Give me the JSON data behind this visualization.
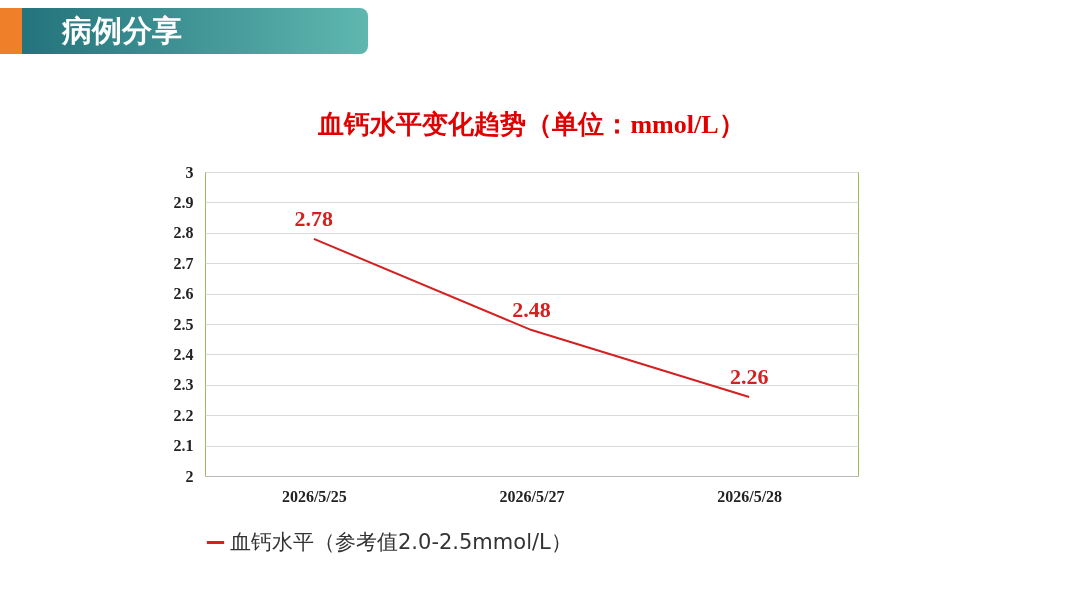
{
  "chart_data": {
    "type": "line",
    "title": "血钙水平变化趋势（单位：mmol/L）",
    "annotations": [
      "病例分享"
    ],
    "categories": [
      "2026/5/25",
      "2026/5/27",
      "2026/5/28"
    ],
    "series": [
      {
        "name": "血钙水平（参考值2.0-2.5mmol/L）",
        "color": "#d42020",
        "values": [
          2.78,
          2.48,
          2.26
        ]
      }
    ],
    "ylim": [
      2,
      3
    ],
    "yticks": [
      2,
      2.1,
      2.2,
      2.3,
      2.4,
      2.5,
      2.6,
      2.7,
      2.8,
      2.9,
      3
    ],
    "grid": "y",
    "legend": "bottom",
    "data_labels": true,
    "marker": "none",
    "line_style": "solid"
  }
}
